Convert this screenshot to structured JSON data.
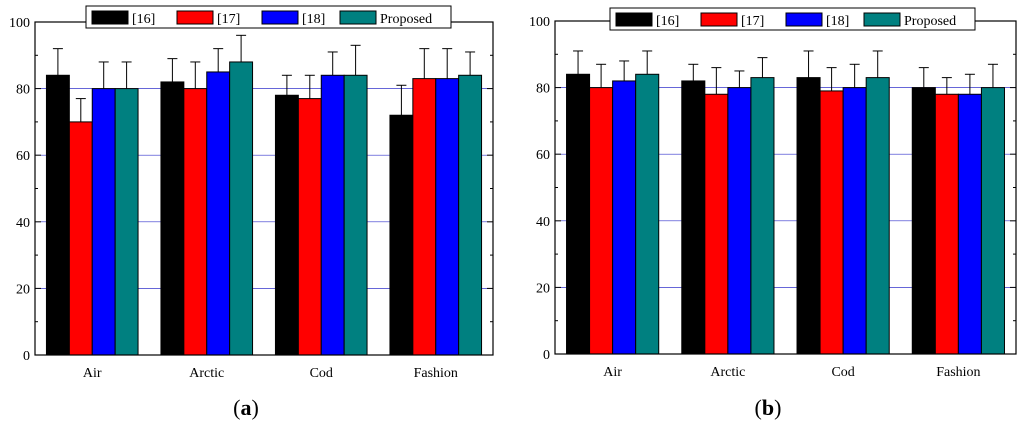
{
  "colors": {
    "series_16": "#000000",
    "series_17": "#ff0000",
    "series_18": "#0000ff",
    "series_proposed": "#008080",
    "gridline": "#3333cc",
    "axis": "#000000"
  },
  "chart_data": [
    {
      "type": "bar",
      "panel": "a",
      "panel_label": "a",
      "categories": [
        "Air",
        "Arctic",
        "Cod",
        "Fashion"
      ],
      "series": [
        {
          "name": "[16]",
          "values": [
            84,
            82,
            78,
            72
          ],
          "errors": [
            8,
            7,
            6,
            9
          ]
        },
        {
          "name": "[17]",
          "values": [
            70,
            80,
            77,
            83
          ],
          "errors": [
            7,
            8,
            7,
            9
          ]
        },
        {
          "name": "[18]",
          "values": [
            80,
            85,
            84,
            83
          ],
          "errors": [
            8,
            7,
            7,
            9
          ]
        },
        {
          "name": "Proposed",
          "values": [
            80,
            88,
            84,
            84
          ],
          "errors": [
            8,
            8,
            9,
            7
          ]
        }
      ],
      "ylim": [
        0,
        100
      ],
      "yticks": [
        "0",
        "20",
        "40",
        "60",
        "80",
        "100"
      ],
      "grid": true,
      "legend": "top"
    },
    {
      "type": "bar",
      "panel": "b",
      "panel_label": "b",
      "categories": [
        "Air",
        "Arctic",
        "Cod",
        "Fashion"
      ],
      "series": [
        {
          "name": "[16]",
          "values": [
            84,
            82,
            83,
            80
          ],
          "errors": [
            7,
            5,
            8,
            6
          ]
        },
        {
          "name": "[17]",
          "values": [
            80,
            78,
            79,
            78
          ],
          "errors": [
            7,
            8,
            7,
            5
          ]
        },
        {
          "name": "[18]",
          "values": [
            82,
            80,
            80,
            78
          ],
          "errors": [
            6,
            5,
            7,
            6
          ]
        },
        {
          "name": "Proposed",
          "values": [
            84,
            83,
            83,
            80
          ],
          "errors": [
            7,
            6,
            8,
            7
          ]
        }
      ],
      "ylim": [
        0,
        100
      ],
      "yticks": [
        "0",
        "20",
        "40",
        "60",
        "80",
        "100"
      ],
      "grid": true,
      "legend": "top"
    }
  ]
}
